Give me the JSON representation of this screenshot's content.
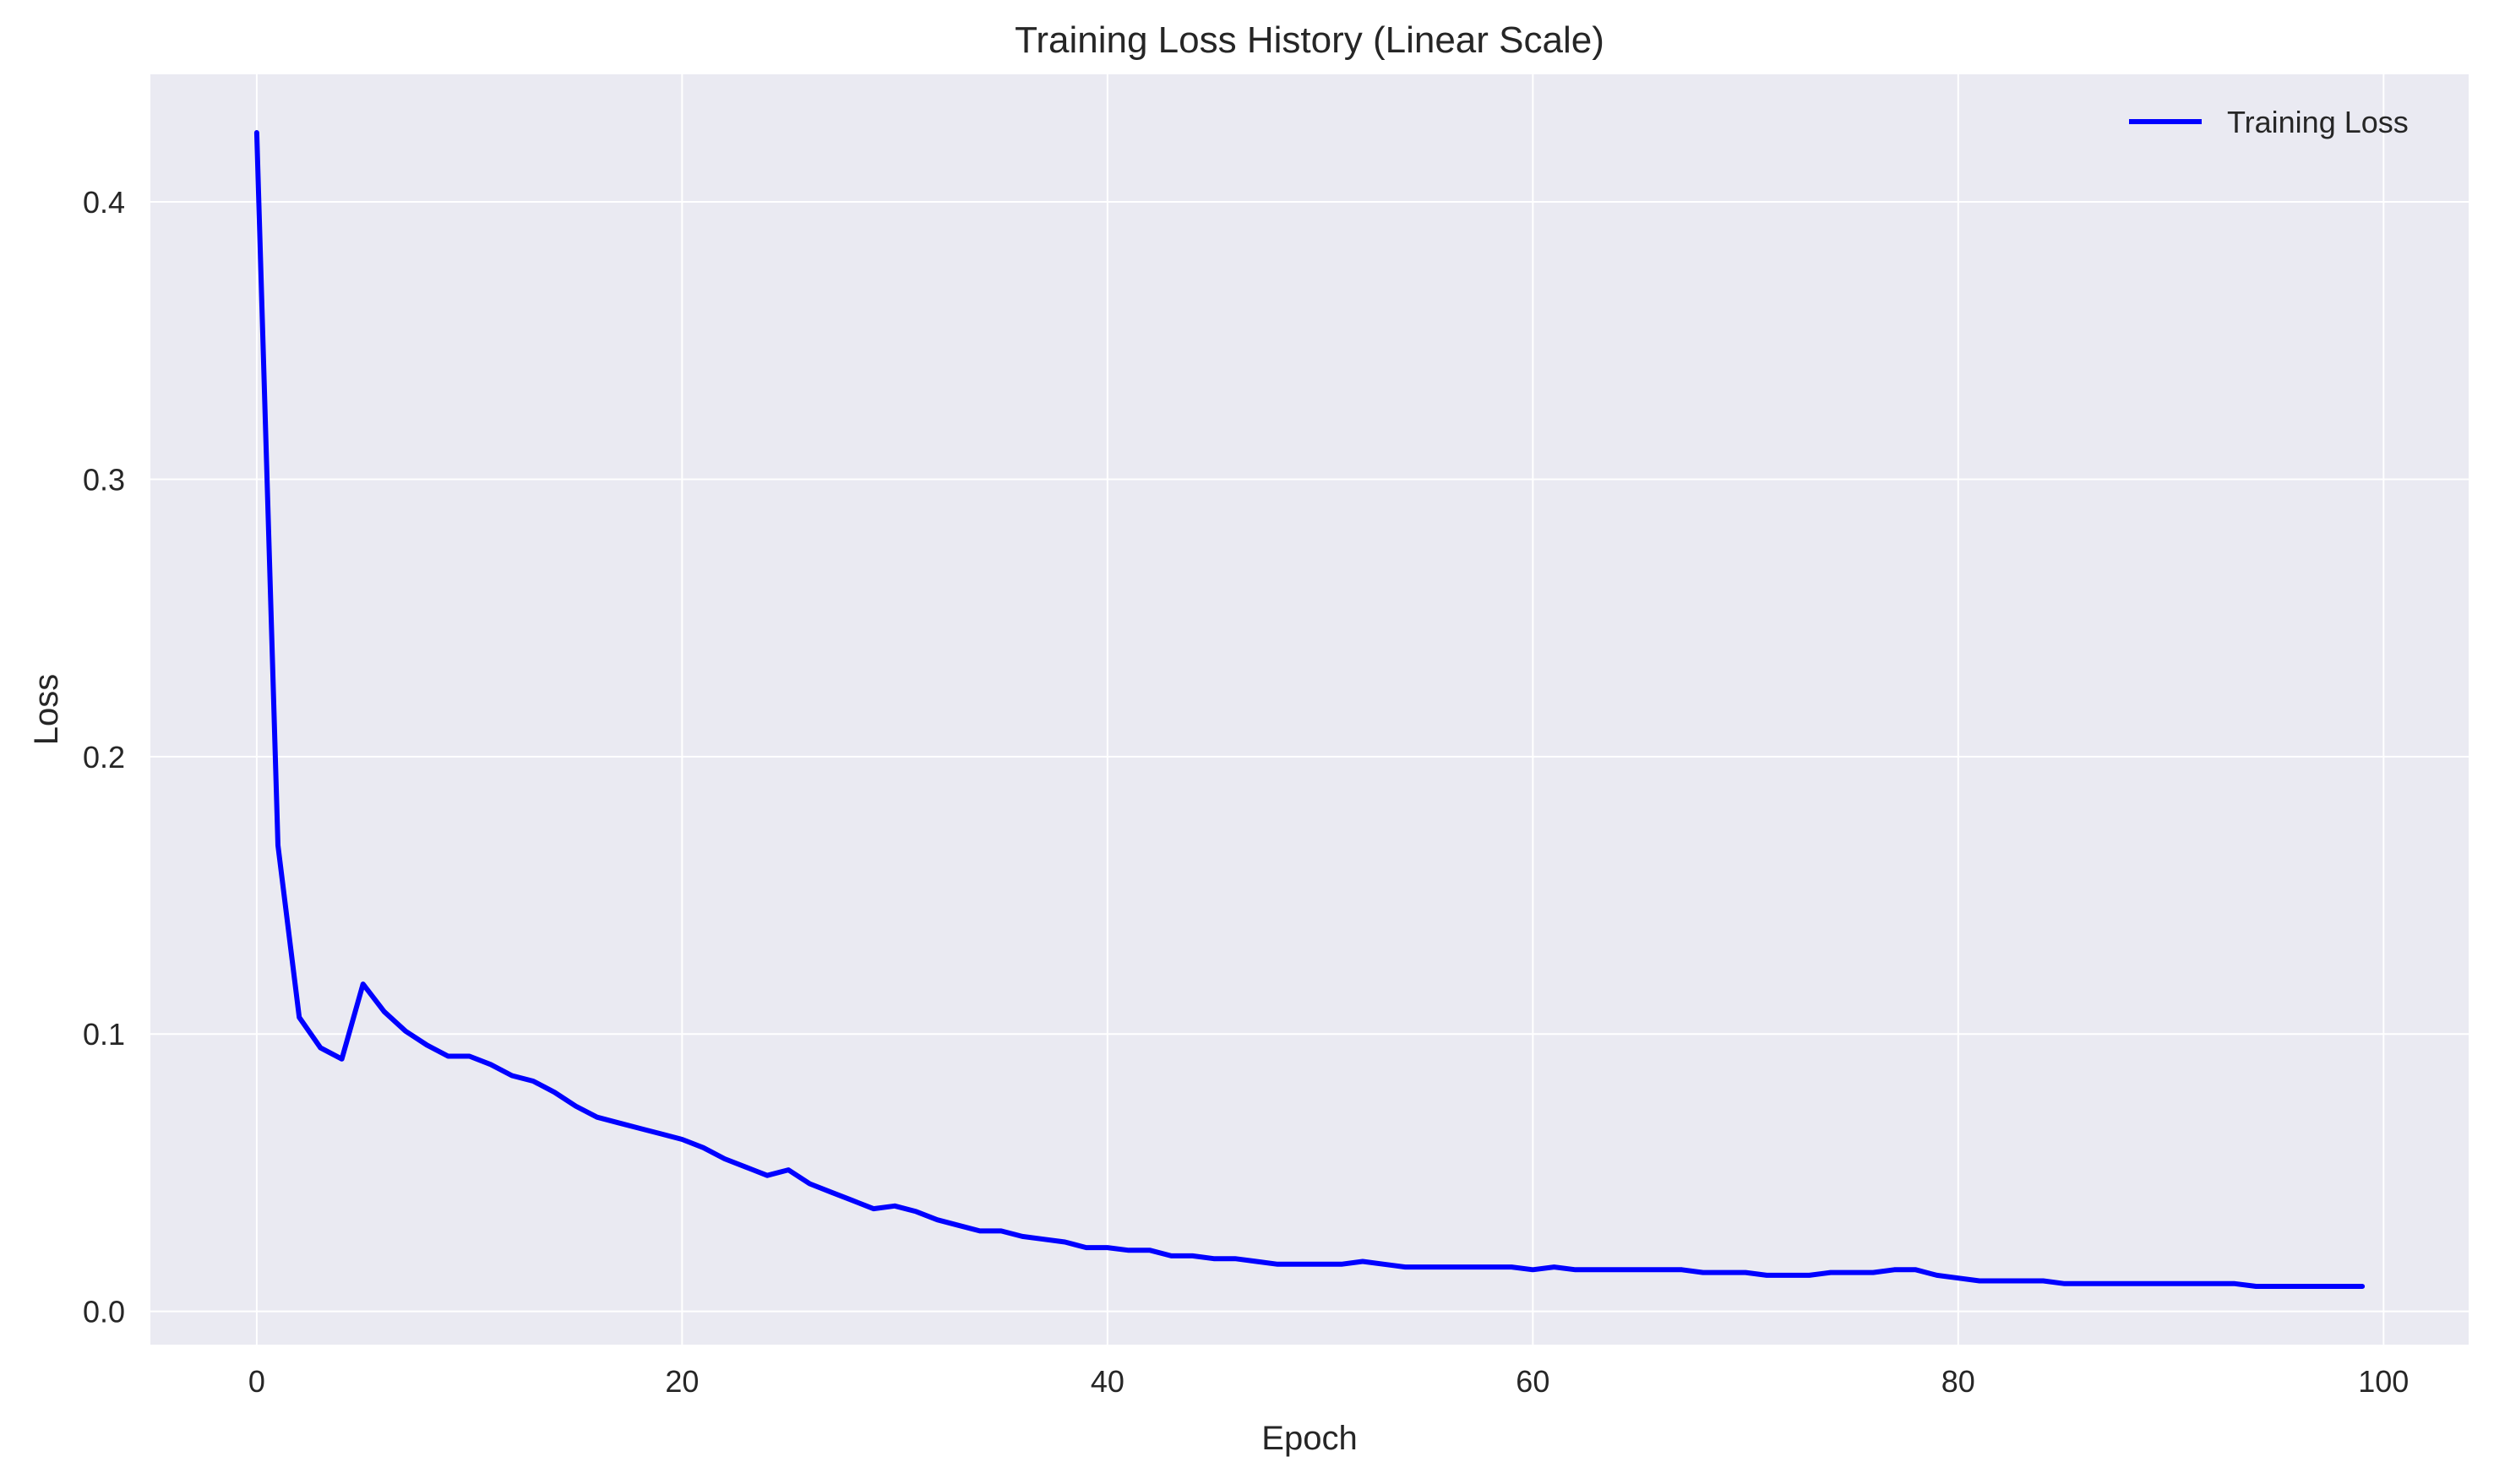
{
  "chart_data": {
    "type": "line",
    "title": "Training Loss History (Linear Scale)",
    "xlabel": "Epoch",
    "ylabel": "Loss",
    "xlim": [
      -5,
      104
    ],
    "ylim": [
      -0.012,
      0.446
    ],
    "xticks": [
      0,
      20,
      40,
      60,
      80,
      100
    ],
    "xtick_labels": [
      "0",
      "20",
      "40",
      "60",
      "80",
      "100"
    ],
    "yticks": [
      0.0,
      0.1,
      0.2,
      0.3,
      0.4
    ],
    "ytick_labels": [
      "0.0",
      "0.1",
      "0.2",
      "0.3",
      "0.4"
    ],
    "grid": true,
    "legend_position": "top-right",
    "colors": {
      "plot_background": "#eaeaf2",
      "grid": "#ffffff",
      "line": "#0000ff",
      "text": "#262626"
    },
    "series": [
      {
        "name": "Training Loss",
        "x": [
          0,
          1,
          2,
          3,
          4,
          5,
          6,
          7,
          8,
          9,
          10,
          11,
          12,
          13,
          14,
          15,
          16,
          17,
          18,
          19,
          20,
          21,
          22,
          23,
          24,
          25,
          26,
          27,
          28,
          29,
          30,
          31,
          32,
          33,
          34,
          35,
          36,
          37,
          38,
          39,
          40,
          41,
          42,
          43,
          44,
          45,
          46,
          47,
          48,
          49,
          50,
          51,
          52,
          53,
          54,
          55,
          56,
          57,
          58,
          59,
          60,
          61,
          62,
          63,
          64,
          65,
          66,
          67,
          68,
          69,
          70,
          71,
          72,
          73,
          74,
          75,
          76,
          77,
          78,
          79,
          80,
          81,
          82,
          83,
          84,
          85,
          86,
          87,
          88,
          89,
          90,
          91,
          92,
          93,
          94,
          95,
          96,
          97,
          98,
          99
        ],
        "values": [
          0.425,
          0.168,
          0.106,
          0.095,
          0.091,
          0.118,
          0.108,
          0.101,
          0.096,
          0.092,
          0.092,
          0.089,
          0.085,
          0.083,
          0.079,
          0.074,
          0.07,
          0.068,
          0.066,
          0.064,
          0.062,
          0.059,
          0.055,
          0.052,
          0.049,
          0.051,
          0.046,
          0.043,
          0.04,
          0.037,
          0.038,
          0.036,
          0.033,
          0.031,
          0.029,
          0.029,
          0.027,
          0.026,
          0.025,
          0.023,
          0.023,
          0.022,
          0.022,
          0.02,
          0.02,
          0.019,
          0.019,
          0.018,
          0.017,
          0.017,
          0.017,
          0.017,
          0.018,
          0.017,
          0.016,
          0.016,
          0.016,
          0.016,
          0.016,
          0.016,
          0.015,
          0.016,
          0.015,
          0.015,
          0.015,
          0.015,
          0.015,
          0.015,
          0.014,
          0.014,
          0.014,
          0.013,
          0.013,
          0.013,
          0.014,
          0.014,
          0.014,
          0.015,
          0.015,
          0.013,
          0.012,
          0.011,
          0.011,
          0.011,
          0.011,
          0.01,
          0.01,
          0.01,
          0.01,
          0.01,
          0.01,
          0.01,
          0.01,
          0.01,
          0.009,
          0.009,
          0.009,
          0.009,
          0.009,
          0.009
        ]
      }
    ]
  }
}
